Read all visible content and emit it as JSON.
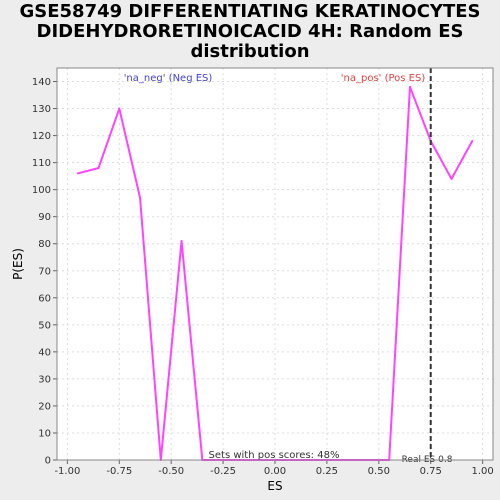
{
  "title_lines": [
    "GSE58749 DIFFERENTIATING KERATINOCYTES",
    "DIDEHYDRORETINOICACID 4H: Random ES",
    "distribution"
  ],
  "chart_data": {
    "type": "line",
    "title": "GSE58749 DIFFERENTIATING KERATINOCYTES DIDEHYDRORETINOICACID 4H: Random ES distribution",
    "xlabel": "ES",
    "ylabel": "P(ES)",
    "xlim": [
      -1.05,
      1.05
    ],
    "ylim": [
      0,
      145
    ],
    "xticks": [
      -1.0,
      -0.75,
      -0.5,
      -0.25,
      0.0,
      0.25,
      0.5,
      0.75,
      1.0
    ],
    "xtick_labels": [
      "-1.00",
      "-0.75",
      "-0.50",
      "-0.25",
      "0.00",
      "0.25",
      "0.50",
      "0.75",
      "1.00"
    ],
    "yticks": [
      0,
      10,
      20,
      30,
      40,
      50,
      60,
      70,
      80,
      90,
      100,
      110,
      120,
      130,
      140
    ],
    "grid": true,
    "series": [
      {
        "color": "#ff44ff",
        "x": [
          -0.95,
          -0.85,
          -0.75,
          -0.65,
          -0.55,
          -0.45,
          -0.35,
          0.45,
          0.55,
          0.65,
          0.75,
          0.85,
          0.95
        ],
        "y": [
          106,
          108,
          130,
          97,
          0,
          81,
          0,
          0,
          0,
          138,
          118,
          104,
          118
        ]
      }
    ],
    "real_es": 0.75,
    "annotations": {
      "neg_label": "'na_neg' (Neg ES)",
      "pos_label": "'na_pos' (Pos ES)",
      "pos_scores": "Sets with pos scores: 48%",
      "real_es_label": "Real ES 0.8"
    },
    "colors": {
      "neg_label": "#4444cc",
      "pos_label": "#dd4444",
      "plot_bg": "#ffffff",
      "page_bg": "#ededed",
      "real_es_line": "#333333"
    }
  }
}
